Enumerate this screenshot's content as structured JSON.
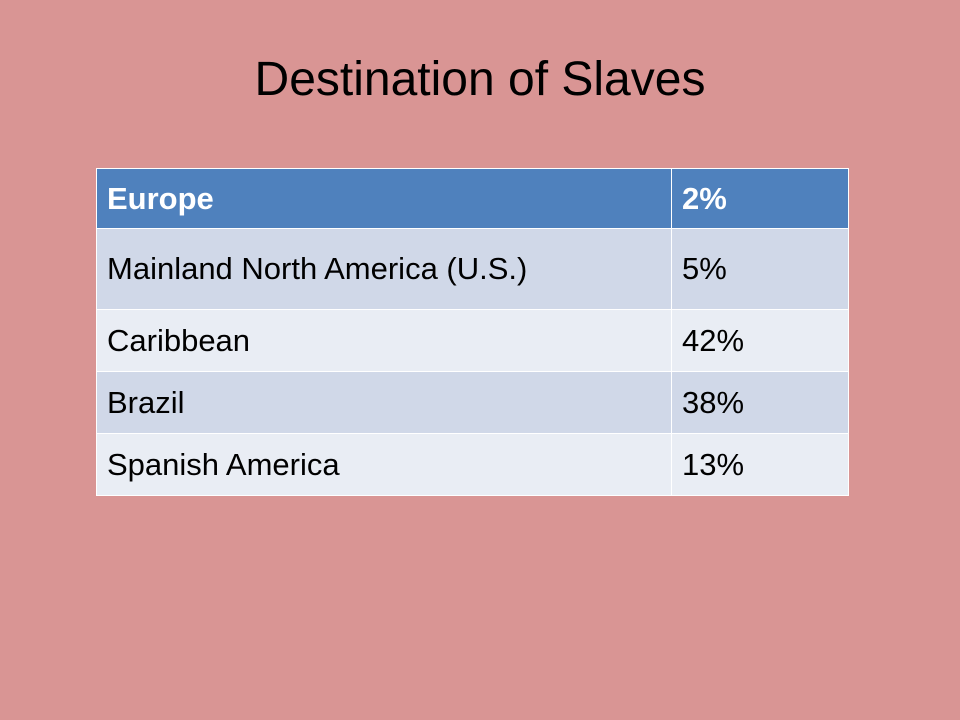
{
  "title": "Destination of Slaves",
  "table": {
    "rows": [
      [
        "Europe",
        "2%"
      ],
      [
        "Mainland North America (U.S.)",
        "5%"
      ],
      [
        "Caribbean",
        "42%"
      ],
      [
        "Brazil",
        "38%"
      ],
      [
        "Spanish America",
        "13%"
      ]
    ]
  }
}
